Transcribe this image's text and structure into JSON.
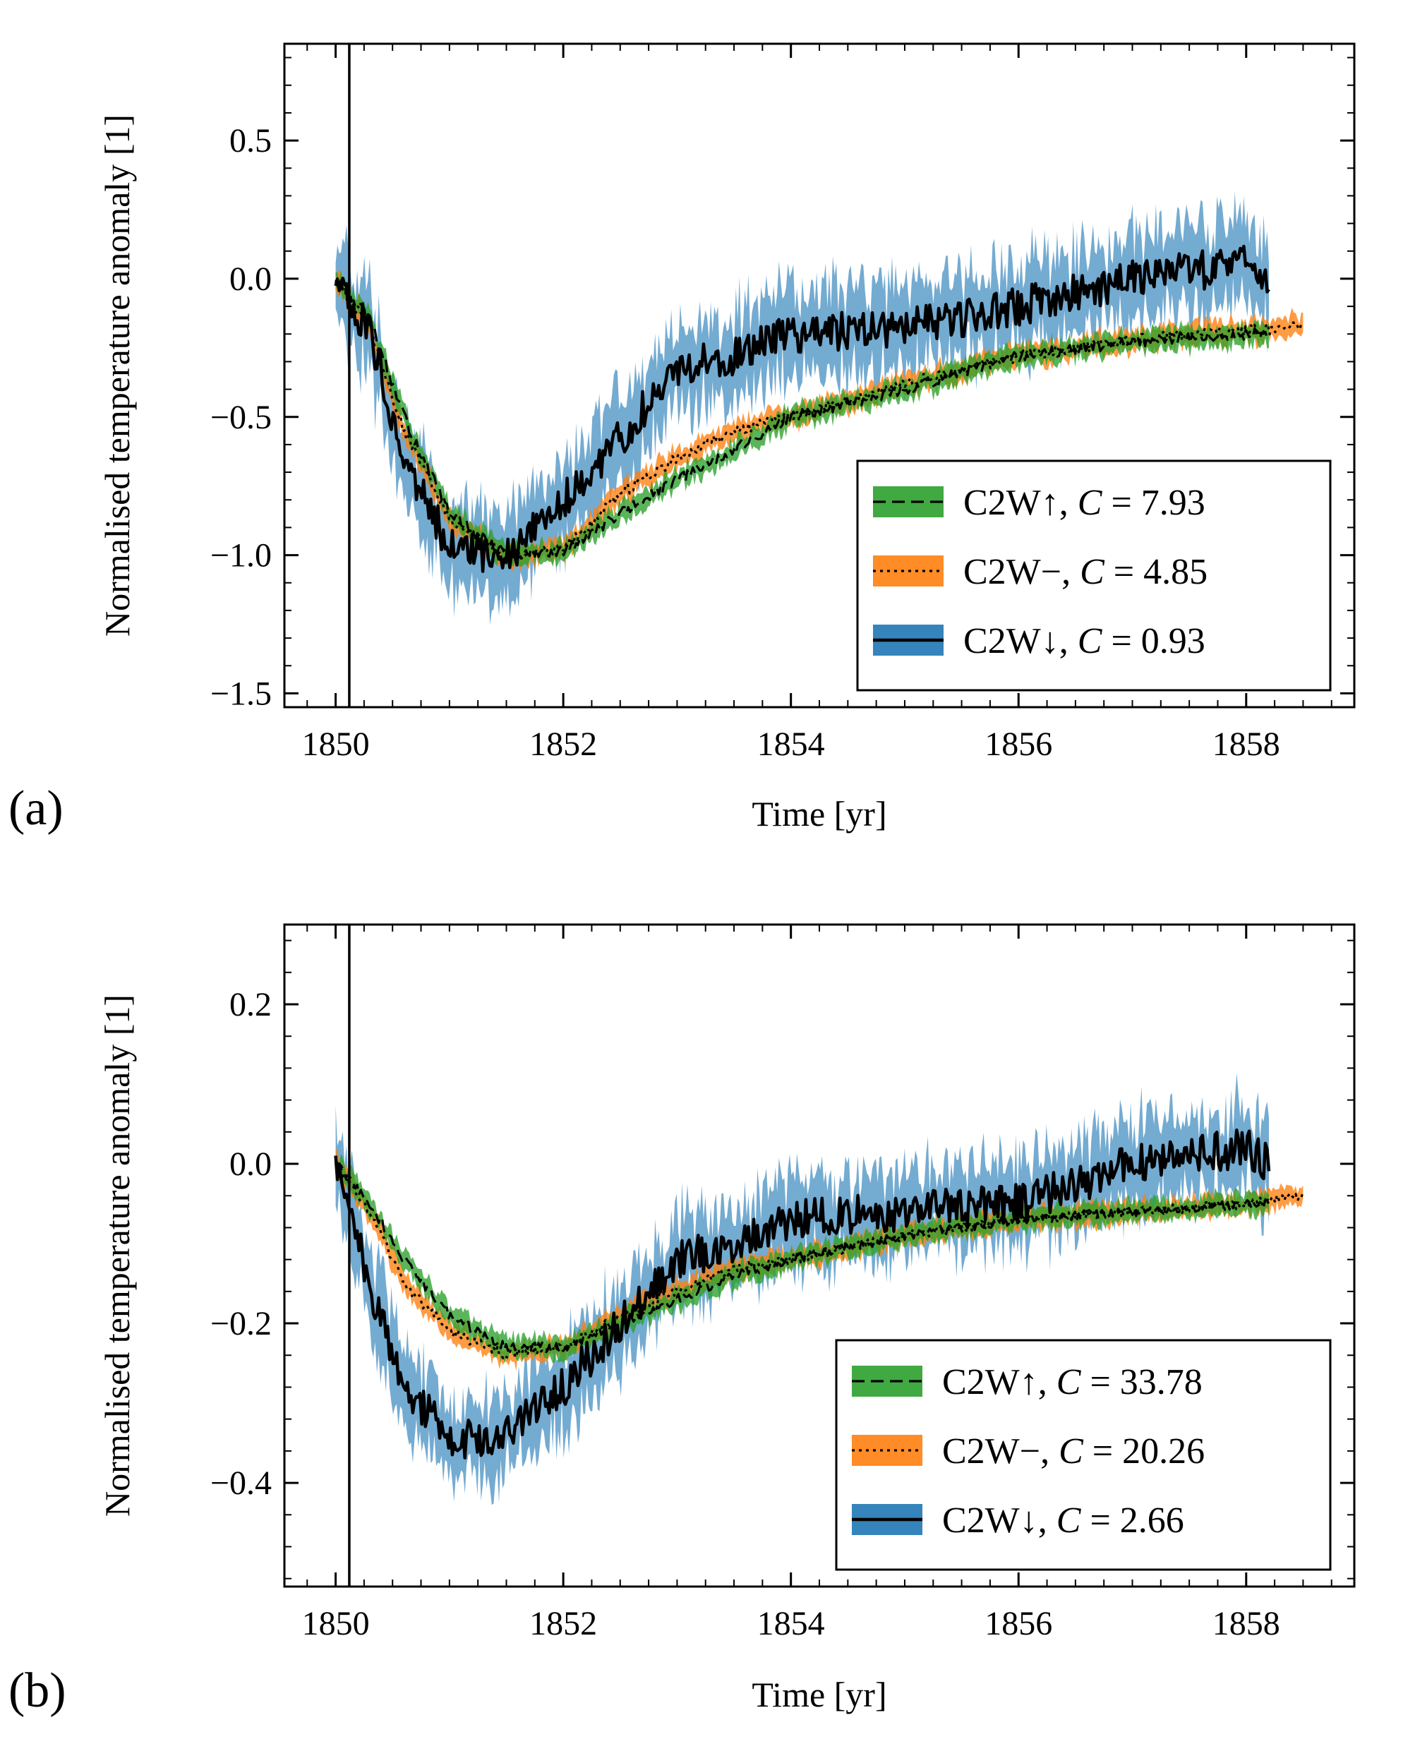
{
  "chart_data": [
    {
      "type": "line",
      "panel_label": "(a)",
      "xlabel": "Time [yr]",
      "ylabel": "Normalised temperature anomaly [1]",
      "xlim": [
        1849.55,
        1858.95
      ],
      "ylim": [
        -1.55,
        0.85
      ],
      "xticks": [
        1850,
        1852,
        1854,
        1856,
        1858
      ],
      "xtick_labels": [
        "1850",
        "1852",
        "1854",
        "1856",
        "1858"
      ],
      "yticks": [
        0.5,
        0.0,
        -0.5,
        -1.0,
        -1.5
      ],
      "ytick_labels": [
        "0.5",
        "0.0",
        "−0.5",
        "−1.0",
        "−1.5"
      ],
      "vertical_line_x": 1850.12,
      "legend_position": "lower-right",
      "series": [
        {
          "name": "C2W↑, C = 7.93",
          "legend_prefix": "C2W↑, ",
          "legend_C": "7.93",
          "color": "#2ca02c",
          "line_style": "dashed",
          "x_end": 1858.2,
          "noise": 0.02,
          "band": 0.035,
          "x": [
            1850.0,
            1850.3,
            1850.6,
            1851.0,
            1851.5,
            1852.0,
            1852.5,
            1853.0,
            1853.5,
            1854.0,
            1855.0,
            1856.0,
            1857.0,
            1858.0,
            1858.2
          ],
          "y": [
            0.0,
            -0.15,
            -0.5,
            -0.85,
            -1.0,
            -0.99,
            -0.85,
            -0.73,
            -0.62,
            -0.5,
            -0.4,
            -0.28,
            -0.23,
            -0.2,
            -0.2
          ]
        },
        {
          "name": "C2W−, C = 4.85",
          "legend_prefix": "C2W−, ",
          "legend_C": "4.85",
          "color": "#ff7f0e",
          "line_style": "dotted",
          "x_end": 1858.5,
          "noise": 0.02,
          "band": 0.035,
          "x": [
            1850.0,
            1850.3,
            1850.6,
            1851.0,
            1851.5,
            1852.0,
            1852.5,
            1853.0,
            1853.5,
            1854.0,
            1855.0,
            1856.0,
            1857.0,
            1858.0,
            1858.5
          ],
          "y": [
            0.0,
            -0.18,
            -0.55,
            -0.87,
            -1.0,
            -0.98,
            -0.78,
            -0.65,
            -0.55,
            -0.5,
            -0.38,
            -0.28,
            -0.22,
            -0.19,
            -0.17
          ]
        },
        {
          "name": "C2W↓, C = 0.93",
          "legend_prefix": "C2W↓, ",
          "legend_C": "0.93",
          "color": "#1f77b4",
          "line_style": "solid",
          "x_end": 1858.2,
          "noise": 0.07,
          "band": 0.15,
          "x": [
            1850.0,
            1850.3,
            1850.6,
            1851.0,
            1851.3,
            1851.6,
            1852.0,
            1852.5,
            1853.0,
            1853.5,
            1854.0,
            1855.0,
            1856.0,
            1857.0,
            1858.0,
            1858.2
          ],
          "y": [
            0.0,
            -0.2,
            -0.65,
            -0.97,
            -1.0,
            -0.97,
            -0.8,
            -0.58,
            -0.32,
            -0.28,
            -0.2,
            -0.18,
            -0.1,
            0.0,
            0.05,
            0.0
          ]
        }
      ]
    },
    {
      "type": "line",
      "panel_label": "(b)",
      "xlabel": "Time [yr]",
      "ylabel": "Normalised temperature anomaly [1]",
      "xlim": [
        1849.55,
        1858.95
      ],
      "ylim": [
        -0.53,
        0.3
      ],
      "xticks": [
        1850,
        1852,
        1854,
        1856,
        1858
      ],
      "xtick_labels": [
        "1850",
        "1852",
        "1854",
        "1856",
        "1858"
      ],
      "yticks": [
        0.2,
        0.0,
        -0.2,
        -0.4
      ],
      "ytick_labels": [
        "0.2",
        "0.0",
        "−0.2",
        "−0.4"
      ],
      "vertical_line_x": 1850.12,
      "legend_position": "lower-right",
      "series": [
        {
          "name": "C2W↑, C = 33.78",
          "legend_prefix": "C2W↑, ",
          "legend_C": "33.78",
          "color": "#2ca02c",
          "line_style": "dashed",
          "x_end": 1858.2,
          "noise": 0.006,
          "band": 0.012,
          "x": [
            1850.0,
            1850.3,
            1850.6,
            1851.0,
            1851.5,
            1852.0,
            1852.5,
            1853.0,
            1853.5,
            1854.0,
            1855.0,
            1856.0,
            1857.0,
            1858.0,
            1858.2
          ],
          "y": [
            0.0,
            -0.05,
            -0.12,
            -0.19,
            -0.23,
            -0.23,
            -0.2,
            -0.17,
            -0.14,
            -0.12,
            -0.09,
            -0.07,
            -0.06,
            -0.05,
            -0.05
          ]
        },
        {
          "name": "C2W−, C = 20.26",
          "legend_prefix": "C2W−, ",
          "legend_C": "20.26",
          "color": "#ff7f0e",
          "line_style": "dotted",
          "x_end": 1858.5,
          "noise": 0.006,
          "band": 0.012,
          "x": [
            1850.0,
            1850.3,
            1850.6,
            1851.0,
            1851.5,
            1852.0,
            1852.5,
            1853.0,
            1853.5,
            1854.0,
            1855.0,
            1856.0,
            1857.0,
            1858.0,
            1858.5
          ],
          "y": [
            0.0,
            -0.06,
            -0.15,
            -0.21,
            -0.24,
            -0.23,
            -0.19,
            -0.16,
            -0.13,
            -0.12,
            -0.09,
            -0.07,
            -0.06,
            -0.05,
            -0.04
          ]
        },
        {
          "name": "C2W↓, C = 2.66",
          "legend_prefix": "C2W↓, ",
          "legend_C": "2.66",
          "color": "#1f77b4",
          "line_style": "solid",
          "x_end": 1858.2,
          "noise": 0.025,
          "band": 0.05,
          "x": [
            1850.0,
            1850.3,
            1850.6,
            1851.0,
            1851.3,
            1851.6,
            1852.0,
            1852.5,
            1853.0,
            1853.5,
            1854.0,
            1855.0,
            1856.0,
            1857.0,
            1858.0,
            1858.2
          ],
          "y": [
            0.0,
            -0.15,
            -0.28,
            -0.34,
            -0.35,
            -0.33,
            -0.28,
            -0.2,
            -0.12,
            -0.1,
            -0.07,
            -0.06,
            -0.05,
            0.0,
            0.02,
            0.0
          ]
        }
      ]
    }
  ]
}
